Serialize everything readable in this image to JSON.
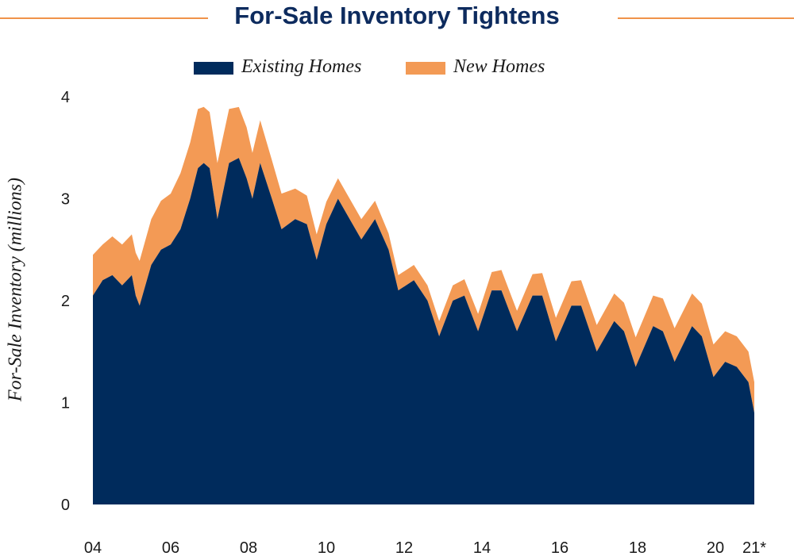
{
  "chart_data": {
    "type": "area",
    "stacked": true,
    "title": "For-Sale Inventory Tightens",
    "ylabel": "For-Sale Inventory (millions)",
    "xlabel": "",
    "ylim": [
      0,
      4
    ],
    "y_ticks": [
      "0",
      "1",
      "2",
      "3",
      "4"
    ],
    "x_tick_labels": [
      "04",
      "06",
      "08",
      "10",
      "12",
      "14",
      "16",
      "18",
      "20",
      "21*"
    ],
    "x_tick_years": [
      2004,
      2006,
      2008,
      2010,
      2012,
      2014,
      2016,
      2018,
      2020,
      2021
    ],
    "legend_position": "top-center",
    "grid": false,
    "colors": {
      "existing": "#002b5c",
      "new": "#f39a55"
    },
    "series": [
      {
        "name": "Existing Homes",
        "points": [
          [
            2004.0,
            2.05
          ],
          [
            2004.25,
            2.2
          ],
          [
            2004.5,
            2.25
          ],
          [
            2004.75,
            2.15
          ],
          [
            2005.0,
            2.25
          ],
          [
            2005.1,
            2.05
          ],
          [
            2005.2,
            1.95
          ],
          [
            2005.5,
            2.35
          ],
          [
            2005.75,
            2.5
          ],
          [
            2006.0,
            2.55
          ],
          [
            2006.25,
            2.7
          ],
          [
            2006.5,
            3.0
          ],
          [
            2006.7,
            3.3
          ],
          [
            2006.85,
            3.35
          ],
          [
            2007.0,
            3.3
          ],
          [
            2007.2,
            2.8
          ],
          [
            2007.5,
            3.35
          ],
          [
            2007.75,
            3.4
          ],
          [
            2007.95,
            3.2
          ],
          [
            2008.1,
            3.0
          ],
          [
            2008.3,
            3.35
          ],
          [
            2008.6,
            3.0
          ],
          [
            2008.85,
            2.7
          ],
          [
            2009.2,
            2.8
          ],
          [
            2009.5,
            2.75
          ],
          [
            2009.75,
            2.4
          ],
          [
            2010.0,
            2.75
          ],
          [
            2010.3,
            3.0
          ],
          [
            2010.6,
            2.8
          ],
          [
            2010.9,
            2.6
          ],
          [
            2011.25,
            2.8
          ],
          [
            2011.6,
            2.5
          ],
          [
            2011.85,
            2.1
          ],
          [
            2012.25,
            2.2
          ],
          [
            2012.6,
            2.0
          ],
          [
            2012.9,
            1.65
          ],
          [
            2013.25,
            2.0
          ],
          [
            2013.55,
            2.05
          ],
          [
            2013.9,
            1.7
          ],
          [
            2014.25,
            2.1
          ],
          [
            2014.5,
            2.1
          ],
          [
            2014.9,
            1.7
          ],
          [
            2015.3,
            2.05
          ],
          [
            2015.55,
            2.05
          ],
          [
            2015.9,
            1.6
          ],
          [
            2016.3,
            1.95
          ],
          [
            2016.55,
            1.95
          ],
          [
            2016.95,
            1.5
          ],
          [
            2017.4,
            1.8
          ],
          [
            2017.65,
            1.7
          ],
          [
            2017.95,
            1.35
          ],
          [
            2018.4,
            1.75
          ],
          [
            2018.65,
            1.7
          ],
          [
            2018.95,
            1.4
          ],
          [
            2019.4,
            1.75
          ],
          [
            2019.65,
            1.65
          ],
          [
            2019.95,
            1.25
          ],
          [
            2020.25,
            1.4
          ],
          [
            2020.55,
            1.35
          ],
          [
            2020.85,
            1.2
          ],
          [
            2021.0,
            0.9
          ]
        ]
      },
      {
        "name": "New Homes",
        "points": [
          [
            2004.0,
            0.4
          ],
          [
            2004.25,
            0.35
          ],
          [
            2004.5,
            0.38
          ],
          [
            2004.75,
            0.4
          ],
          [
            2005.0,
            0.4
          ],
          [
            2005.1,
            0.42
          ],
          [
            2005.2,
            0.44
          ],
          [
            2005.5,
            0.45
          ],
          [
            2005.75,
            0.48
          ],
          [
            2006.0,
            0.5
          ],
          [
            2006.25,
            0.55
          ],
          [
            2006.5,
            0.55
          ],
          [
            2006.7,
            0.58
          ],
          [
            2006.85,
            0.55
          ],
          [
            2007.0,
            0.55
          ],
          [
            2007.2,
            0.55
          ],
          [
            2007.5,
            0.53
          ],
          [
            2007.75,
            0.5
          ],
          [
            2007.95,
            0.5
          ],
          [
            2008.1,
            0.45
          ],
          [
            2008.3,
            0.42
          ],
          [
            2008.6,
            0.38
          ],
          [
            2008.85,
            0.35
          ],
          [
            2009.2,
            0.3
          ],
          [
            2009.5,
            0.28
          ],
          [
            2009.75,
            0.25
          ],
          [
            2010.0,
            0.22
          ],
          [
            2010.3,
            0.2
          ],
          [
            2010.6,
            0.2
          ],
          [
            2010.9,
            0.2
          ],
          [
            2011.25,
            0.18
          ],
          [
            2011.6,
            0.16
          ],
          [
            2011.85,
            0.15
          ],
          [
            2012.25,
            0.15
          ],
          [
            2012.6,
            0.15
          ],
          [
            2012.9,
            0.15
          ],
          [
            2013.25,
            0.15
          ],
          [
            2013.55,
            0.16
          ],
          [
            2013.9,
            0.17
          ],
          [
            2014.25,
            0.18
          ],
          [
            2014.5,
            0.2
          ],
          [
            2014.9,
            0.2
          ],
          [
            2015.3,
            0.21
          ],
          [
            2015.55,
            0.22
          ],
          [
            2015.9,
            0.23
          ],
          [
            2016.3,
            0.24
          ],
          [
            2016.55,
            0.25
          ],
          [
            2016.95,
            0.26
          ],
          [
            2017.4,
            0.27
          ],
          [
            2017.65,
            0.28
          ],
          [
            2017.95,
            0.29
          ],
          [
            2018.4,
            0.3
          ],
          [
            2018.65,
            0.32
          ],
          [
            2018.95,
            0.33
          ],
          [
            2019.4,
            0.32
          ],
          [
            2019.65,
            0.32
          ],
          [
            2019.95,
            0.32
          ],
          [
            2020.25,
            0.3
          ],
          [
            2020.55,
            0.3
          ],
          [
            2020.85,
            0.3
          ],
          [
            2021.0,
            0.3
          ]
        ]
      }
    ]
  }
}
